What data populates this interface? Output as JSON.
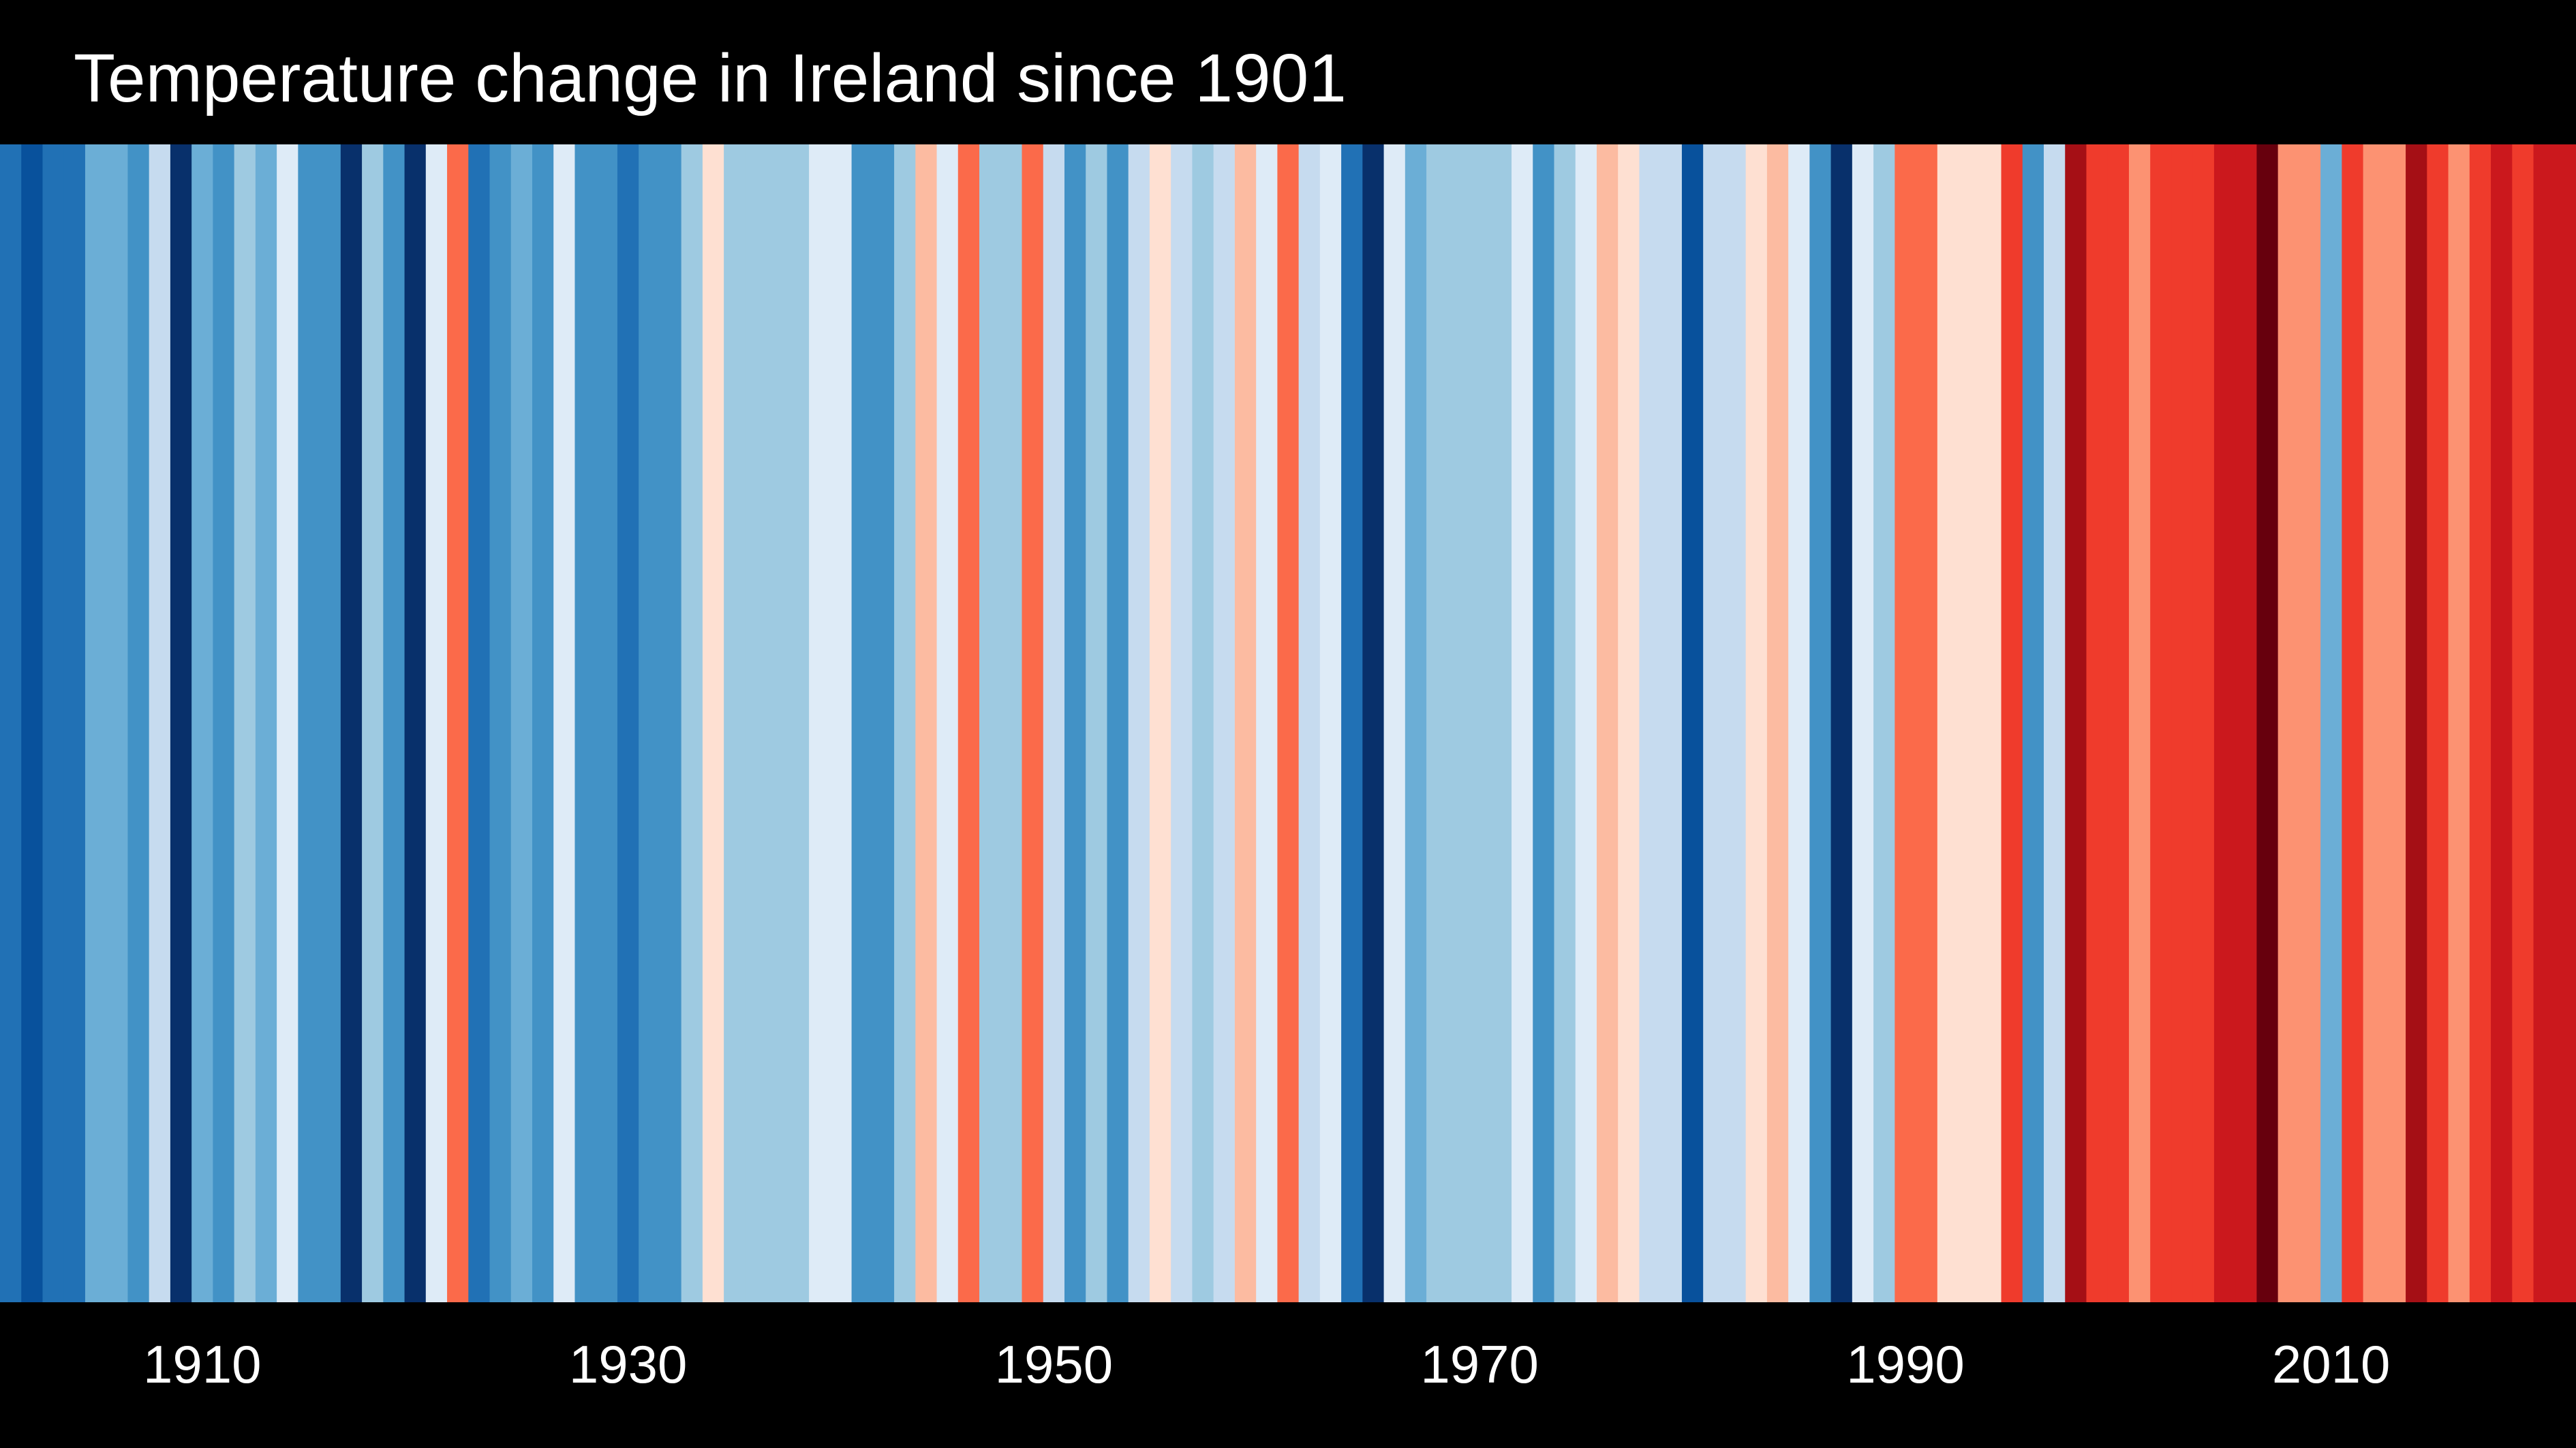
{
  "title": "Temperature change in Ireland since 1901",
  "chart_data": {
    "type": "heatmap",
    "title": "Temperature change in Ireland since 1901",
    "x_start": 1901,
    "x_end": 2021,
    "x_ticks": [
      1910,
      1930,
      1950,
      1970,
      1990,
      2010
    ],
    "grid": false,
    "legend": "none",
    "palette": {
      "B4": "#08306b",
      "B3": "#08519c",
      "B2": "#2171b5",
      "B1": "#4292c6",
      "B0": "#6baed6",
      "Bm": "#9ecae1",
      "Bl": "#c6dbef",
      "Bw": "#deebf7",
      "Rw": "#fee0d2",
      "Rl": "#fcbba1",
      "Rm": "#fc9272",
      "R0": "#fb6a4a",
      "R1": "#ef3b2c",
      "R2": "#cb181d",
      "R3": "#a50f15",
      "R4": "#67000d"
    },
    "year_colors": [
      "B2",
      "B3",
      "B2",
      "B2",
      "B0",
      "B0",
      "B1",
      "Bl",
      "B4",
      "B0",
      "B1",
      "Bm",
      "B0",
      "Bw",
      "B1",
      "B1",
      "B4",
      "Bm",
      "B1",
      "B4",
      "Bw",
      "R0",
      "B2",
      "B1",
      "B0",
      "B1",
      "Bw",
      "B1",
      "B1",
      "B2",
      "B1",
      "B1",
      "Bm",
      "Rw",
      "Bm",
      "Bm",
      "Bm",
      "Bm",
      "Bw",
      "Bw",
      "B1",
      "B1",
      "Bm",
      "Rl",
      "Bw",
      "R0",
      "Bm",
      "Bm",
      "R0",
      "Bl",
      "B1",
      "Bm",
      "B1",
      "Bl",
      "Rw",
      "Bl",
      "Bm",
      "Bl",
      "Rl",
      "Bw",
      "R0",
      "Bl",
      "Bw",
      "B2",
      "B4",
      "Bw",
      "B0",
      "Bm",
      "Bm",
      "Bm",
      "Bm",
      "Bw",
      "B1",
      "Bm",
      "Bw",
      "Rl",
      "Rw",
      "Bl",
      "Bl",
      "B3",
      "Bl",
      "Bl",
      "Rw",
      "Rl",
      "Bw",
      "B1",
      "B4",
      "Bw",
      "Bm",
      "R0",
      "R0",
      "Rw",
      "Rw",
      "Rw",
      "R1",
      "B1",
      "Bl",
      "R3",
      "R1",
      "R1",
      "Rm",
      "R1",
      "R1",
      "R1",
      "R2",
      "R2",
      "R4",
      "Rm",
      "Rm",
      "B0",
      "R1",
      "Rm",
      "Rm",
      "R3",
      "R1",
      "Rm",
      "R1",
      "R2",
      "R1",
      "R2",
      "R2"
    ]
  }
}
